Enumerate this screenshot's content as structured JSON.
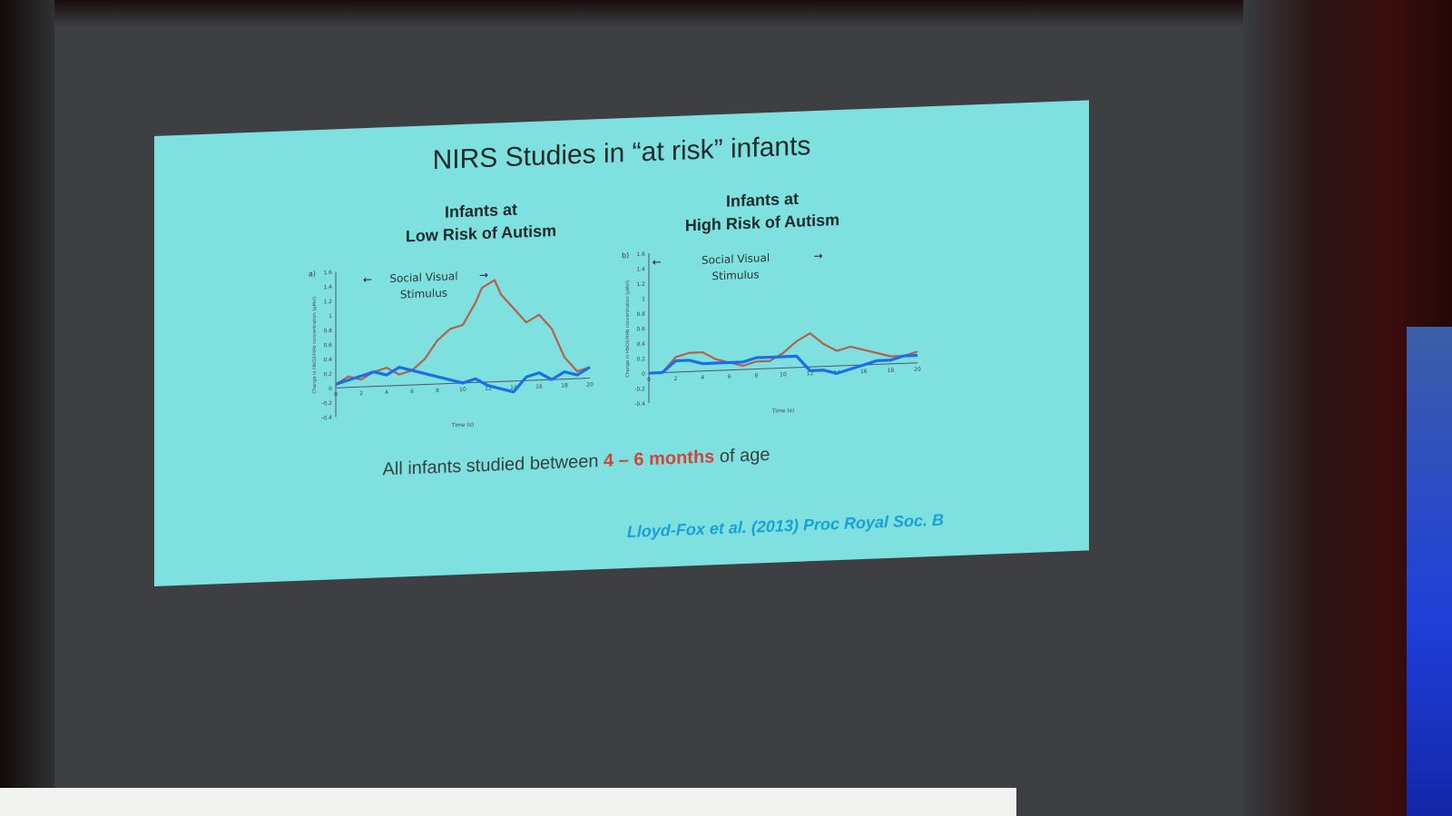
{
  "slide": {
    "title": "NIRS Studies in “at risk” infants",
    "caption_prefix": "All infants studied between ",
    "caption_highlight": "4 – 6 months",
    "caption_suffix": " of age",
    "citation": "Lloyd-Fox et al. (2013) Proc Royal Soc. B",
    "colors": {
      "slide_background": "#7fe0e0",
      "highlight": "#d0463a",
      "citation": "#1aa0d8"
    }
  },
  "chart_data": [
    {
      "type": "line",
      "panel_label": "a)",
      "title_line1": "Infants at",
      "title_line2": "Low Risk of Autism",
      "stimulus_label_line1": "Social Visual",
      "stimulus_label_line2": "Stimulus",
      "xlabel": "Time (s)",
      "ylabel": "Change in HbO2/HHb concentration (µMol)",
      "xlim": [
        0,
        20
      ],
      "ylim": [
        -0.4,
        1.6
      ],
      "x_ticks": [
        "0",
        "2",
        "4",
        "6",
        "8",
        "10",
        "12",
        "14",
        "16",
        "18",
        "20"
      ],
      "y_ticks": [
        "-0.4",
        "-0.2",
        "0",
        "0.2",
        "0.4",
        "0.6",
        "0.8",
        "1",
        "1.2",
        "1.4",
        "1.6"
      ],
      "series": [
        {
          "color": "#b5604e",
          "x": [
            0,
            1,
            2,
            3,
            4,
            5,
            6,
            7,
            8,
            9,
            10,
            11,
            11.5,
            12,
            12.5,
            13,
            14,
            15,
            16,
            17,
            18,
            19,
            20
          ],
          "y": [
            0.05,
            0.15,
            0.1,
            0.2,
            0.25,
            0.15,
            0.2,
            0.35,
            0.6,
            0.75,
            0.8,
            1.1,
            1.3,
            1.35,
            1.4,
            1.2,
            1.0,
            0.8,
            0.9,
            0.7,
            0.3,
            0.1,
            0.15
          ]
        },
        {
          "color": "#1a6fe8",
          "x": [
            0,
            1,
            2,
            3,
            4,
            5,
            6,
            7,
            8,
            9,
            10,
            11,
            12,
            13,
            14,
            15,
            16,
            17,
            18,
            19,
            20
          ],
          "y": [
            0.05,
            0.1,
            0.15,
            0.2,
            0.15,
            0.25,
            0.2,
            0.15,
            0.1,
            0.05,
            0.0,
            0.05,
            -0.05,
            -0.1,
            -0.15,
            0.05,
            0.1,
            0.0,
            0.1,
            0.05,
            0.15
          ]
        }
      ]
    },
    {
      "type": "line",
      "panel_label": "b)",
      "title_line1": "Infants at",
      "title_line2": "High Risk of Autism",
      "stimulus_label_line1": "Social Visual",
      "stimulus_label_line2": "Stimulus",
      "xlabel": "Time (s)",
      "ylabel": "Change in HbO2/HHb concentration (µMol)",
      "xlim": [
        0,
        20
      ],
      "ylim": [
        -0.4,
        1.6
      ],
      "x_ticks": [
        "0",
        "2",
        "4",
        "6",
        "8",
        "10",
        "12",
        "14",
        "16",
        "18",
        "20"
      ],
      "y_ticks": [
        "-0.4",
        "-0.2",
        "0",
        "0.2",
        "0.4",
        "0.6",
        "0.8",
        "1",
        "1.2",
        "1.4",
        "1.6"
      ],
      "series": [
        {
          "color": "#b5604e",
          "x": [
            0,
            1,
            2,
            3,
            4,
            5,
            6,
            7,
            8,
            9,
            10,
            11,
            12,
            13,
            14,
            15,
            16,
            17,
            18,
            19,
            20
          ],
          "y": [
            0.0,
            0.0,
            0.2,
            0.25,
            0.25,
            0.15,
            0.1,
            0.05,
            0.1,
            0.1,
            0.2,
            0.35,
            0.45,
            0.3,
            0.2,
            0.25,
            0.2,
            0.15,
            0.1,
            0.1,
            0.15
          ]
        },
        {
          "color": "#1a6fe8",
          "x": [
            0,
            1,
            2,
            3,
            4,
            5,
            6,
            7,
            8,
            9,
            10,
            11,
            12,
            13,
            14,
            15,
            16,
            17,
            18,
            19,
            20
          ],
          "y": [
            0.0,
            0.0,
            0.15,
            0.15,
            0.1,
            0.1,
            0.1,
            0.1,
            0.15,
            0.15,
            0.15,
            0.15,
            -0.05,
            -0.05,
            -0.1,
            -0.05,
            0.0,
            0.05,
            0.05,
            0.1,
            0.1
          ]
        }
      ]
    }
  ]
}
